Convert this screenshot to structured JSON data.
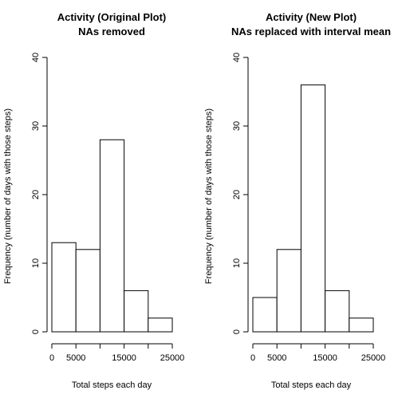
{
  "chart_data": [
    {
      "type": "bar",
      "title": "Activity (Original Plot)",
      "subtitle": "NAs removed",
      "xlabel": "Total steps each day",
      "ylabel": "Frequency (number of days with those steps)",
      "bins": [
        [
          0,
          5000
        ],
        [
          5000,
          10000
        ],
        [
          10000,
          15000
        ],
        [
          15000,
          20000
        ],
        [
          20000,
          25000
        ]
      ],
      "values": [
        13,
        12,
        28,
        6,
        2
      ],
      "xlim": [
        0,
        25000
      ],
      "ylim": [
        0,
        40
      ],
      "xticks": [
        0,
        5000,
        15000,
        25000
      ],
      "xtick_labels": [
        "0",
        "5000",
        "15000",
        "25000"
      ],
      "xminor_ticks": [
        10000,
        20000
      ],
      "yticks": [
        0,
        10,
        20,
        30,
        40
      ],
      "ytick_labels": [
        "0",
        "10",
        "20",
        "30",
        "40"
      ],
      "grid": false
    },
    {
      "type": "bar",
      "title": "Activity (New Plot)",
      "subtitle": "NAs replaced with interval mean",
      "xlabel": "Total steps each day",
      "ylabel": "Frequency (number of days with those steps)",
      "bins": [
        [
          0,
          5000
        ],
        [
          5000,
          10000
        ],
        [
          10000,
          15000
        ],
        [
          15000,
          20000
        ],
        [
          20000,
          25000
        ]
      ],
      "values": [
        5,
        12,
        36,
        6,
        2
      ],
      "xlim": [
        0,
        25000
      ],
      "ylim": [
        0,
        40
      ],
      "xticks": [
        0,
        5000,
        15000,
        25000
      ],
      "xtick_labels": [
        "0",
        "5000",
        "15000",
        "25000"
      ],
      "xminor_ticks": [
        10000,
        20000
      ],
      "yticks": [
        0,
        10,
        20,
        30,
        40
      ],
      "ytick_labels": [
        "0",
        "10",
        "20",
        "30",
        "40"
      ],
      "grid": false
    }
  ]
}
